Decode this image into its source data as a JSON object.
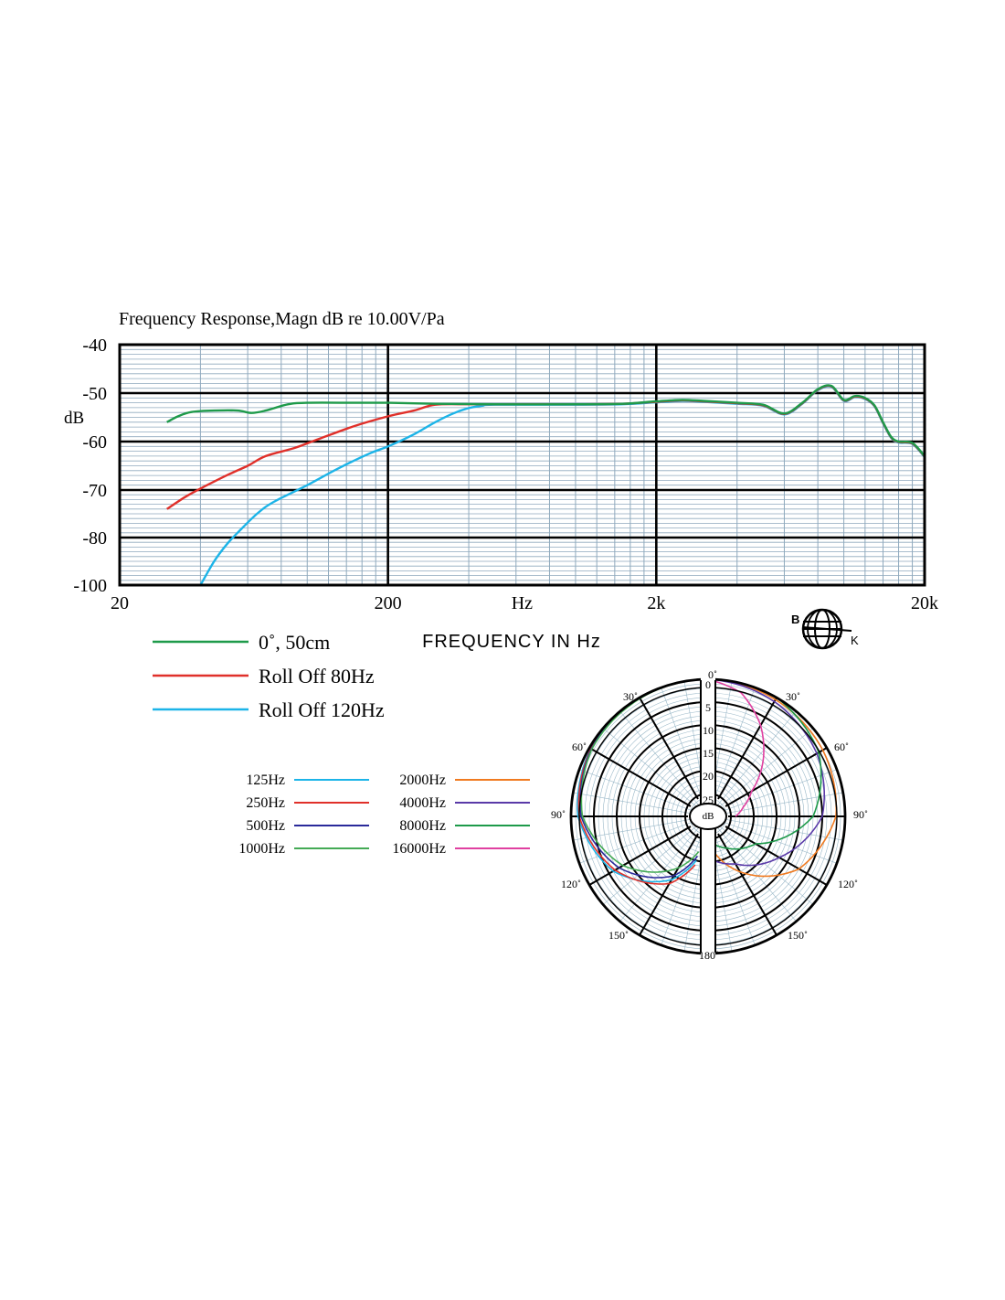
{
  "chart_data": [
    {
      "type": "line",
      "title": "Frequency   Response,Magn   dB re 10.00V/Pa",
      "ylabel": "dB",
      "xlabel": "FREQUENCY IN Hz",
      "x_scale": "log",
      "xlim": [
        20,
        20000
      ],
      "xticks": [
        {
          "value": 20,
          "label": "20"
        },
        {
          "value": 200,
          "label": "200"
        },
        {
          "value": 632,
          "label": "Hz"
        },
        {
          "value": 2000,
          "label": "2k"
        },
        {
          "value": 20000,
          "label": "20k"
        }
      ],
      "ytick_labels": [
        "-40",
        "-50",
        "-60",
        "-70",
        "-80",
        "-100"
      ],
      "grid": true,
      "legend": "bottom-left",
      "series": [
        {
          "name": "0˚, 50cm",
          "color": "#1e9a4a",
          "points": [
            [
              30,
              -56.0
            ],
            [
              33,
              -54.8
            ],
            [
              37,
              -53.9
            ],
            [
              45,
              -53.6
            ],
            [
              55,
              -53.6
            ],
            [
              62,
              -54.1
            ],
            [
              70,
              -53.6
            ],
            [
              85,
              -52.3
            ],
            [
              100,
              -52.0
            ],
            [
              150,
              -52.0
            ],
            [
              200,
              -52.0
            ],
            [
              300,
              -52.2
            ],
            [
              500,
              -52.3
            ],
            [
              1000,
              -52.3
            ],
            [
              1500,
              -52.2
            ],
            [
              2000,
              -51.7
            ],
            [
              2500,
              -51.4
            ],
            [
              3000,
              -51.6
            ],
            [
              4000,
              -52.0
            ],
            [
              5000,
              -52.4
            ],
            [
              6000,
              -54.2
            ],
            [
              7000,
              -52.0
            ],
            [
              8000,
              -49.2
            ],
            [
              9000,
              -48.5
            ],
            [
              10000,
              -51.4
            ],
            [
              11000,
              -50.6
            ],
            [
              12000,
              -51.0
            ],
            [
              13000,
              -52.5
            ],
            [
              14000,
              -56.0
            ],
            [
              15000,
              -59.0
            ],
            [
              16000,
              -60.0
            ],
            [
              18000,
              -60.3
            ],
            [
              20000,
              -63.0
            ]
          ]
        },
        {
          "name": "Roll Off  80Hz",
          "color": "#e0302a",
          "points": [
            [
              30,
              -74.0
            ],
            [
              35,
              -71.5
            ],
            [
              40,
              -69.7
            ],
            [
              50,
              -67.0
            ],
            [
              60,
              -65.0
            ],
            [
              70,
              -63.0
            ],
            [
              90,
              -61.3
            ],
            [
              110,
              -59.5
            ],
            [
              150,
              -56.8
            ],
            [
              200,
              -54.8
            ],
            [
              250,
              -53.6
            ],
            [
              300,
              -52.4
            ],
            [
              400,
              -52.3
            ],
            [
              500,
              -52.3
            ],
            [
              1000,
              -52.3
            ],
            [
              1500,
              -52.2
            ],
            [
              2000,
              -51.8
            ],
            [
              2500,
              -51.5
            ],
            [
              3000,
              -51.7
            ],
            [
              4000,
              -52.1
            ],
            [
              5000,
              -52.5
            ],
            [
              6000,
              -54.3
            ],
            [
              7000,
              -52.1
            ],
            [
              8000,
              -49.3
            ],
            [
              9000,
              -48.6
            ],
            [
              10000,
              -51.5
            ],
            [
              11000,
              -50.7
            ],
            [
              12000,
              -51.1
            ],
            [
              13000,
              -52.6
            ],
            [
              14000,
              -56.1
            ],
            [
              15000,
              -59.1
            ],
            [
              16000,
              -60.1
            ],
            [
              18000,
              -60.4
            ],
            [
              20000,
              -63.1
            ]
          ]
        },
        {
          "name": "Roll Off  120Hz",
          "color": "#1cb4e8",
          "points": [
            [
              40,
              -100
            ],
            [
              45,
              -90
            ],
            [
              50,
              -83
            ],
            [
              55,
              -79
            ],
            [
              65,
              -75
            ],
            [
              75,
              -72.5
            ],
            [
              100,
              -69
            ],
            [
              130,
              -65.6
            ],
            [
              170,
              -62.5
            ],
            [
              200,
              -61
            ],
            [
              250,
              -58.5
            ],
            [
              300,
              -56
            ],
            [
              350,
              -54.2
            ],
            [
              400,
              -53.1
            ],
            [
              450,
              -52.6
            ],
            [
              500,
              -52.4
            ],
            [
              1000,
              -52.4
            ],
            [
              1500,
              -52.3
            ],
            [
              2000,
              -51.9
            ],
            [
              2500,
              -51.6
            ],
            [
              3000,
              -51.8
            ],
            [
              4000,
              -52.2
            ],
            [
              5000,
              -52.6
            ],
            [
              6000,
              -54.4
            ],
            [
              7000,
              -52.2
            ],
            [
              8000,
              -49.4
            ],
            [
              9000,
              -48.7
            ],
            [
              10000,
              -51.6
            ],
            [
              11000,
              -50.8
            ],
            [
              12000,
              -51.2
            ],
            [
              13000,
              -52.7
            ],
            [
              14000,
              -56.2
            ],
            [
              15000,
              -59.2
            ],
            [
              16000,
              -60.2
            ],
            [
              18000,
              -60.5
            ],
            [
              20000,
              -63.2
            ]
          ]
        }
      ]
    },
    {
      "type": "polar",
      "r_labels": [
        "0",
        "5",
        "10",
        "15",
        "20",
        "25"
      ],
      "r_unit_label": "dB",
      "angle_labels": [
        "0˚",
        "30˚",
        "60˚",
        "90˚",
        "120˚",
        "150˚",
        "180˚"
      ],
      "series": [
        {
          "name": "125Hz",
          "color": "#1cb4e8",
          "side": "left",
          "db": [
            [
              0,
              0
            ],
            [
              30,
              0
            ],
            [
              60,
              0.3
            ],
            [
              90,
              1.5
            ],
            [
              120,
              6
            ],
            [
              150,
              14
            ],
            [
              165,
              20
            ]
          ]
        },
        {
          "name": "250Hz",
          "color": "#e0302a",
          "side": "left",
          "db": [
            [
              0,
              0
            ],
            [
              30,
              0
            ],
            [
              60,
              0.4
            ],
            [
              90,
              1.8
            ],
            [
              120,
              6.5
            ],
            [
              150,
              13
            ],
            [
              165,
              19
            ]
          ]
        },
        {
          "name": "500Hz",
          "color": "#2a2a9a",
          "side": "left",
          "db": [
            [
              0,
              0
            ],
            [
              30,
              0
            ],
            [
              60,
              0.5
            ],
            [
              90,
              2.2
            ],
            [
              120,
              7.5
            ],
            [
              150,
              15
            ],
            [
              165,
              21
            ]
          ]
        },
        {
          "name": "1000Hz",
          "color": "#44aa55",
          "side": "left",
          "db": [
            [
              0,
              0
            ],
            [
              30,
              0.2
            ],
            [
              60,
              0.6
            ],
            [
              90,
              2.5
            ],
            [
              120,
              8.5
            ],
            [
              150,
              17
            ],
            [
              165,
              22
            ]
          ]
        },
        {
          "name": "2000Hz",
          "color": "#f07a20",
          "side": "right",
          "db": [
            [
              0,
              0
            ],
            [
              30,
              0.5
            ],
            [
              60,
              1
            ],
            [
              90,
              2
            ],
            [
              120,
              7
            ],
            [
              150,
              16
            ],
            [
              170,
              22
            ]
          ]
        },
        {
          "name": "4000Hz",
          "color": "#5a3aa8",
          "side": "right",
          "db": [
            [
              0,
              0
            ],
            [
              30,
              1
            ],
            [
              60,
              2.5
            ],
            [
              90,
              5
            ],
            [
              120,
              12
            ],
            [
              150,
              18
            ],
            [
              170,
              20
            ]
          ]
        },
        {
          "name": "8000Hz",
          "color": "#1e9a4a",
          "side": "right",
          "db": [
            [
              0,
              0
            ],
            [
              30,
              0
            ],
            [
              60,
              2
            ],
            [
              90,
              7
            ],
            [
              120,
              18
            ],
            [
              150,
              22
            ],
            [
              170,
              24
            ]
          ]
        },
        {
          "name": "16000Hz",
          "color": "#e040a0",
          "side": "right",
          "db": [
            [
              0,
              0
            ],
            [
              15,
              2
            ],
            [
              30,
              7
            ],
            [
              45,
              13
            ],
            [
              60,
              19
            ],
            [
              75,
              22
            ],
            [
              90,
              24
            ]
          ]
        }
      ]
    }
  ],
  "logo": {
    "left_letter": "B",
    "right_letter": "K"
  }
}
